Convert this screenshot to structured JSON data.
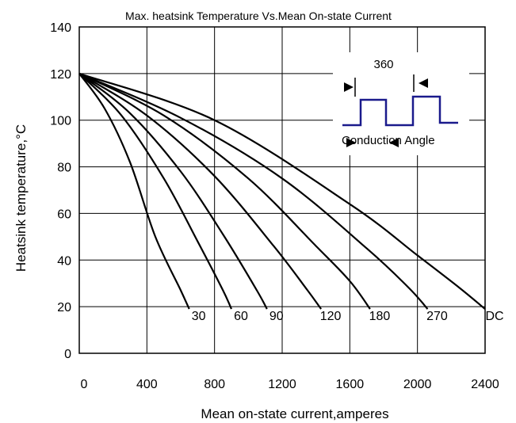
{
  "chart_data": {
    "type": "line",
    "title": "Max. heatsink Temperature Vs.Mean On-state Current",
    "xlabel": "Mean on-state current,amperes",
    "ylabel": "Heatsink temperature,°C",
    "xlim": [
      0,
      2400
    ],
    "ylim": [
      0,
      140
    ],
    "xticks": [
      0,
      400,
      800,
      1200,
      1600,
      2000,
      2400
    ],
    "yticks": [
      0,
      20,
      40,
      60,
      80,
      100,
      120,
      140
    ],
    "xtick_labels": [
      "0",
      "400",
      "800",
      "1200",
      "1600",
      "2000",
      "2400"
    ],
    "ytick_labels": [
      "0",
      "20",
      "40",
      "60",
      "80",
      "100",
      "120",
      "140"
    ],
    "grid": true,
    "series": [
      {
        "name": "30",
        "x": [
          0,
          150,
          300,
          450,
          600,
          650
        ],
        "y": [
          120,
          105,
          82,
          50,
          27,
          19
        ]
      },
      {
        "name": "60",
        "x": [
          0,
          250,
          500,
          700,
          850,
          900
        ],
        "y": [
          120,
          102,
          75,
          48,
          27,
          19
        ]
      },
      {
        "name": "90",
        "x": [
          0,
          300,
          600,
          850,
          1050,
          1110
        ],
        "y": [
          120,
          103,
          78,
          51,
          27,
          19
        ]
      },
      {
        "name": "120",
        "x": [
          0,
          400,
          800,
          1150,
          1350,
          1430
        ],
        "y": [
          120,
          102,
          76,
          46,
          27,
          19
        ]
      },
      {
        "name": "180",
        "x": [
          0,
          500,
          1000,
          1400,
          1600,
          1720
        ],
        "y": [
          120,
          102,
          75,
          46,
          31,
          19
        ]
      },
      {
        "name": "270",
        "x": [
          0,
          600,
          1200,
          1700,
          1950,
          2060
        ],
        "y": [
          120,
          101,
          75,
          45,
          28,
          19
        ]
      },
      {
        "name": "DC",
        "x": [
          0,
          800,
          1600,
          2000,
          2250,
          2400
        ],
        "y": [
          120,
          100,
          64,
          42,
          28,
          19
        ]
      }
    ],
    "inset": {
      "angle_label": "360",
      "caption": "Conduction Angle",
      "waveform_color": "#1a1a8c"
    }
  }
}
